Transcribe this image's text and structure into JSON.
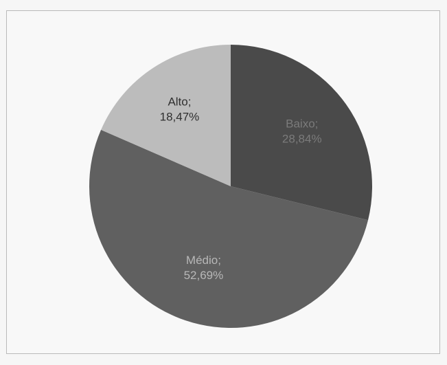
{
  "chart_data": {
    "type": "pie",
    "start_angle": "12 o'clock, clockwise",
    "slices": [
      {
        "category": "Baixo;",
        "label": "28,84%",
        "value": 28.84,
        "color": "#4a4a4a",
        "text_color": "#7b7b7b"
      },
      {
        "category": "Médio;",
        "label": "52,69%",
        "value": 52.69,
        "color": "#606060",
        "text_color": "#b8b8b8"
      },
      {
        "category": "Alto;",
        "label": "18,47%",
        "value": 18.47,
        "color": "#bcbcbc",
        "text_color": "#2f2f2f"
      }
    ]
  }
}
